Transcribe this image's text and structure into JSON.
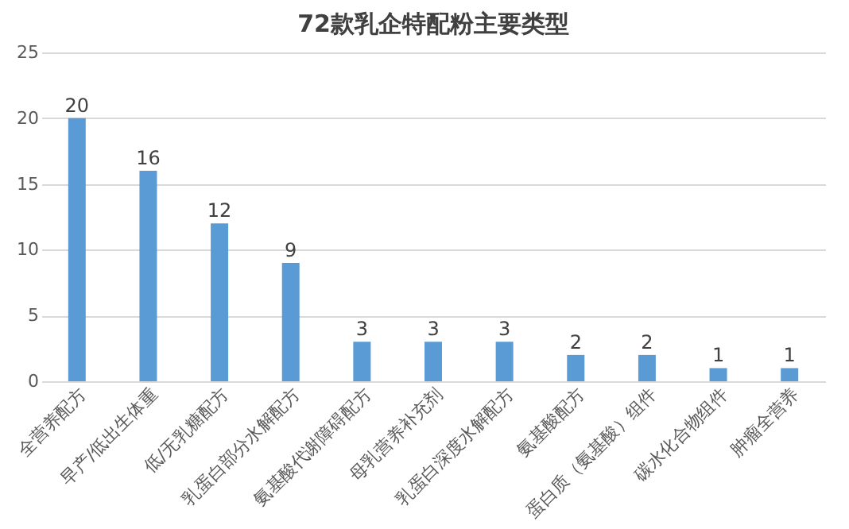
{
  "chart_data": {
    "type": "bar",
    "title": "72款乳企特配粉主要类型",
    "categories": [
      "全营养配方",
      "早产/低出生体重",
      "低/无乳糖配方",
      "乳蛋白部分水解配方",
      "氨基酸代谢障碍配方",
      "母乳营养补充剂",
      "乳蛋白深度水解配方",
      "氨基酸配方",
      "蛋白质（氨基酸）组件",
      "碳水化合物组件",
      "肿瘤全营养"
    ],
    "values": [
      20,
      16,
      12,
      9,
      3,
      3,
      3,
      2,
      2,
      1,
      1
    ],
    "color": "#5b9bd5",
    "ylim": [
      0,
      25
    ],
    "yticks": [
      0,
      5,
      10,
      15,
      20,
      25
    ],
    "grid": "y",
    "data_labels": true
  }
}
